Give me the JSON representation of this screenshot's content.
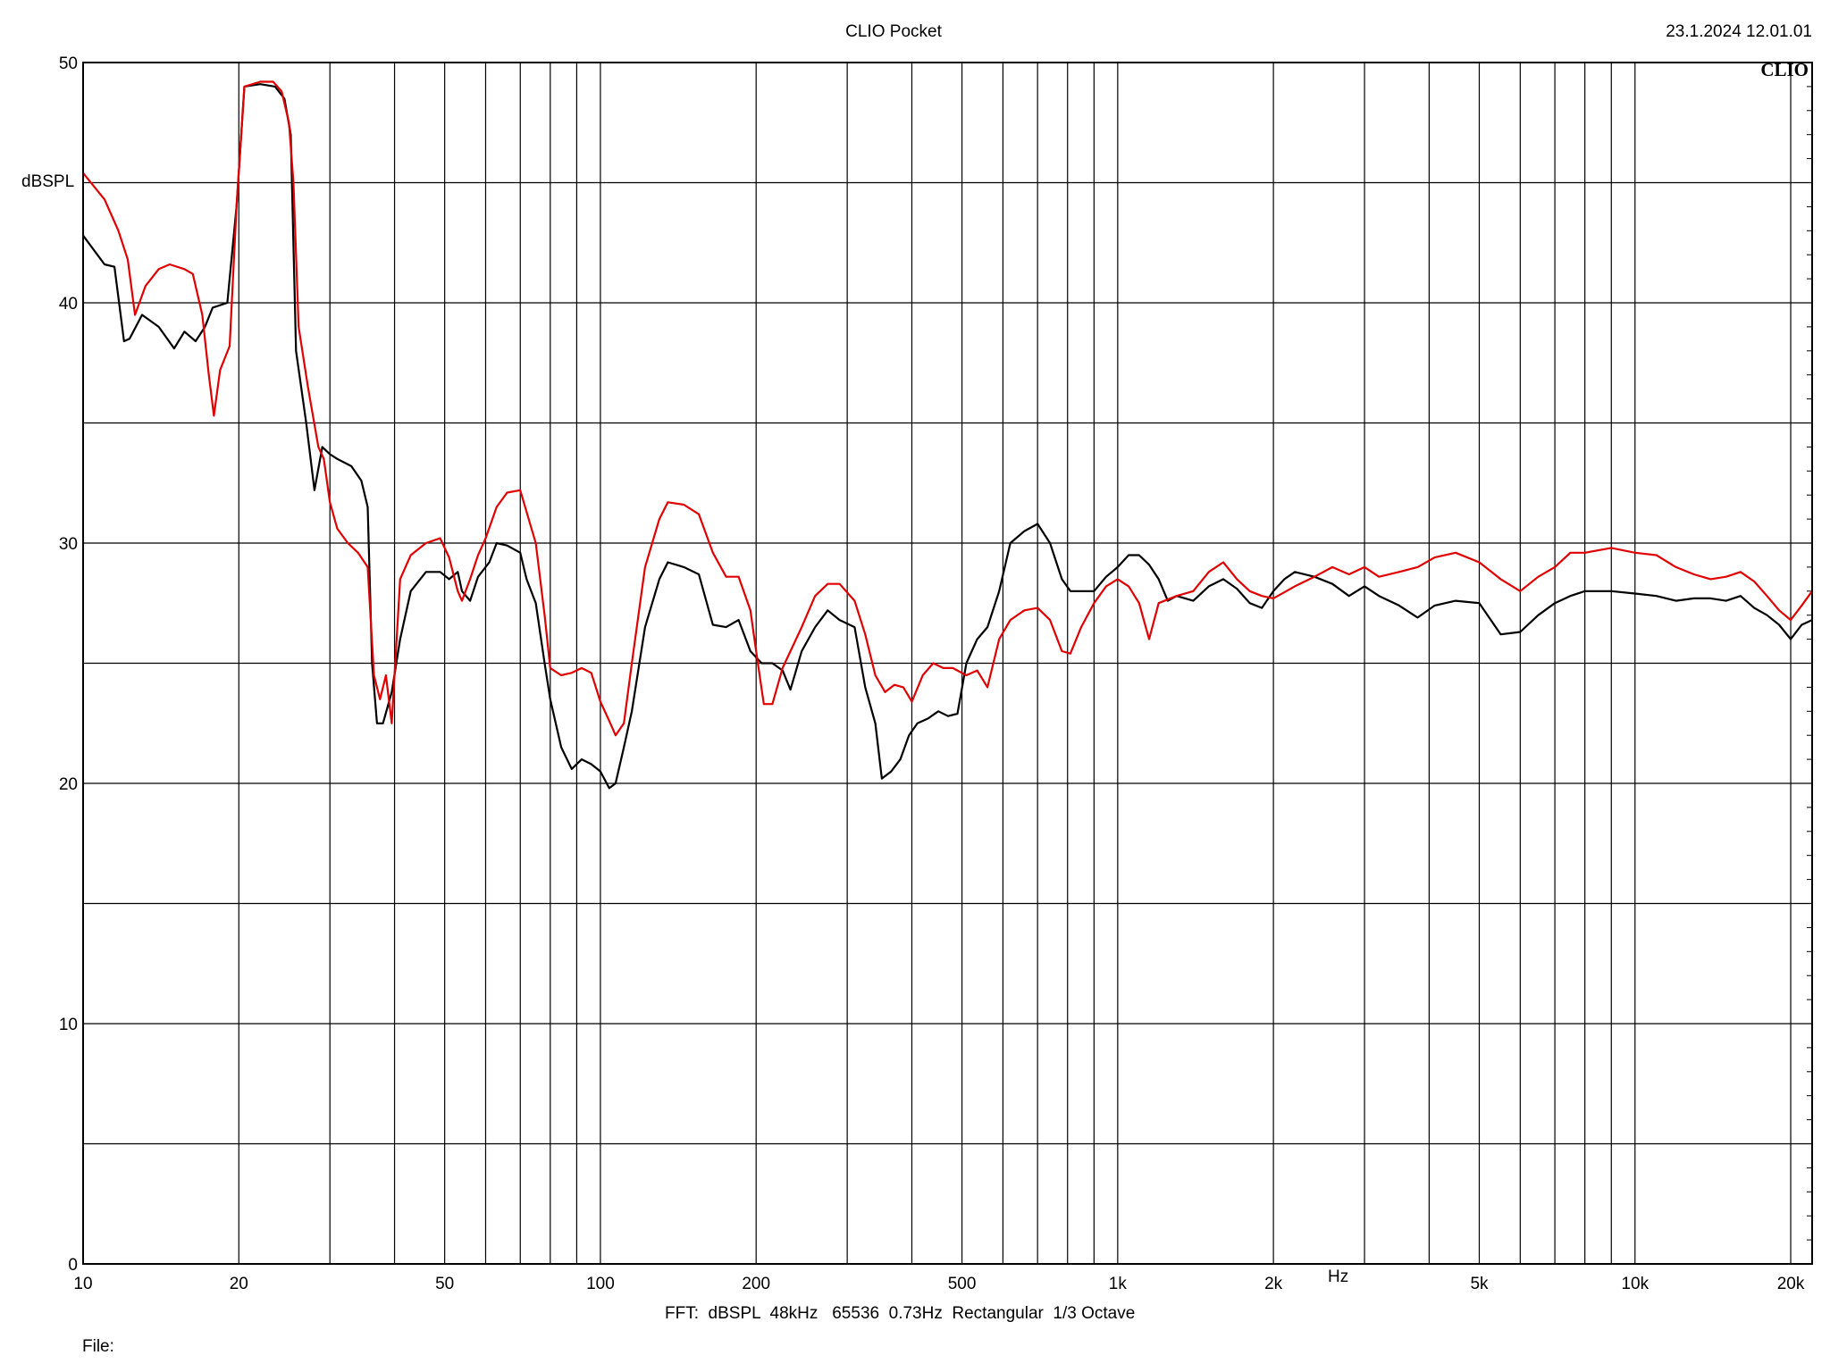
{
  "header": {
    "title": "CLIO Pocket",
    "timestamp": "23.1.2024 12.01.01",
    "brand": "CLIO"
  },
  "footer": {
    "settings": "FFT:  dBSPL  48kHz   65536  0.73Hz  Rectangular  1/3 Octave",
    "file_label": "File:"
  },
  "colors": {
    "series_black": "#000000",
    "series_red": "#e00000",
    "grid": "#000000",
    "background": "#ffffff"
  },
  "chart_data": {
    "type": "line",
    "title": "CLIO Pocket",
    "xlabel": "Hz",
    "ylabel": "dBSPL",
    "x_scale": "log",
    "xlim": [
      10,
      22000
    ],
    "ylim": [
      0,
      50
    ],
    "grid": true,
    "x_ticks": [
      {
        "value": 10,
        "label": "10"
      },
      {
        "value": 20,
        "label": "20"
      },
      {
        "value": 50,
        "label": "50"
      },
      {
        "value": 100,
        "label": "100"
      },
      {
        "value": 200,
        "label": "200"
      },
      {
        "value": 500,
        "label": "500"
      },
      {
        "value": 1000,
        "label": "1k"
      },
      {
        "value": 2000,
        "label": "2k"
      },
      {
        "value": 5000,
        "label": "5k"
      },
      {
        "value": 10000,
        "label": "10k"
      },
      {
        "value": 20000,
        "label": "20k"
      }
    ],
    "y_ticks": [
      {
        "value": 0,
        "label": "0"
      },
      {
        "value": 10,
        "label": "10"
      },
      {
        "value": 20,
        "label": "20"
      },
      {
        "value": 30,
        "label": "30"
      },
      {
        "value": 40,
        "label": "40"
      },
      {
        "value": 50,
        "label": "50"
      }
    ],
    "series": [
      {
        "color": "#000000",
        "points": [
          [
            10,
            42.8
          ],
          [
            11,
            41.6
          ],
          [
            11.5,
            41.5
          ],
          [
            12,
            38.4
          ],
          [
            12.3,
            38.5
          ],
          [
            13,
            39.5
          ],
          [
            14,
            39.0
          ],
          [
            15,
            38.1
          ],
          [
            15.7,
            38.8
          ],
          [
            16.5,
            38.4
          ],
          [
            17.2,
            39.0
          ],
          [
            17.8,
            39.8
          ],
          [
            19,
            40.0
          ],
          [
            19.8,
            44.0
          ],
          [
            20.5,
            49.0
          ],
          [
            22,
            49.1
          ],
          [
            23.5,
            49.0
          ],
          [
            24.5,
            48.5
          ],
          [
            25.2,
            47.0
          ],
          [
            25.8,
            38.0
          ],
          [
            27,
            35.0
          ],
          [
            28,
            32.2
          ],
          [
            29,
            34.0
          ],
          [
            30,
            33.7
          ],
          [
            31,
            33.5
          ],
          [
            33,
            33.2
          ],
          [
            34.5,
            32.6
          ],
          [
            35.5,
            31.5
          ],
          [
            36.2,
            25.0
          ],
          [
            37,
            22.5
          ],
          [
            38,
            22.5
          ],
          [
            39.5,
            23.8
          ],
          [
            41,
            26.0
          ],
          [
            43,
            28.0
          ],
          [
            46,
            28.8
          ],
          [
            49,
            28.8
          ],
          [
            51,
            28.5
          ],
          [
            53,
            28.8
          ],
          [
            54,
            28.0
          ],
          [
            56,
            27.6
          ],
          [
            58,
            28.6
          ],
          [
            61,
            29.2
          ],
          [
            63,
            30.0
          ],
          [
            66,
            29.9
          ],
          [
            70,
            29.6
          ],
          [
            72,
            28.5
          ],
          [
            75,
            27.5
          ],
          [
            78,
            25.0
          ],
          [
            80,
            23.5
          ],
          [
            84,
            21.5
          ],
          [
            88,
            20.6
          ],
          [
            92,
            21.0
          ],
          [
            96,
            20.8
          ],
          [
            100,
            20.5
          ],
          [
            104,
            19.8
          ],
          [
            107,
            20.0
          ],
          [
            111,
            21.5
          ],
          [
            115,
            23.0
          ],
          [
            122,
            26.5
          ],
          [
            130,
            28.5
          ],
          [
            135,
            29.2
          ],
          [
            145,
            29.0
          ],
          [
            155,
            28.7
          ],
          [
            165,
            26.6
          ],
          [
            175,
            26.5
          ],
          [
            185,
            26.8
          ],
          [
            195,
            25.5
          ],
          [
            205,
            25.0
          ],
          [
            215,
            25.0
          ],
          [
            225,
            24.7
          ],
          [
            233,
            23.9
          ],
          [
            245,
            25.5
          ],
          [
            260,
            26.5
          ],
          [
            275,
            27.2
          ],
          [
            290,
            26.8
          ],
          [
            310,
            26.5
          ],
          [
            325,
            24.0
          ],
          [
            340,
            22.5
          ],
          [
            350,
            20.2
          ],
          [
            365,
            20.5
          ],
          [
            380,
            21.0
          ],
          [
            395,
            22.0
          ],
          [
            410,
            22.5
          ],
          [
            430,
            22.7
          ],
          [
            450,
            23.0
          ],
          [
            470,
            22.8
          ],
          [
            490,
            22.9
          ],
          [
            510,
            25.0
          ],
          [
            535,
            26.0
          ],
          [
            560,
            26.5
          ],
          [
            590,
            28.0
          ],
          [
            620,
            30.0
          ],
          [
            660,
            30.5
          ],
          [
            700,
            30.8
          ],
          [
            740,
            30.0
          ],
          [
            780,
            28.5
          ],
          [
            810,
            28.0
          ],
          [
            850,
            28.0
          ],
          [
            900,
            28.0
          ],
          [
            950,
            28.6
          ],
          [
            1000,
            29.0
          ],
          [
            1050,
            29.5
          ],
          [
            1100,
            29.5
          ],
          [
            1150,
            29.1
          ],
          [
            1200,
            28.5
          ],
          [
            1250,
            27.6
          ],
          [
            1300,
            27.8
          ],
          [
            1400,
            27.6
          ],
          [
            1500,
            28.2
          ],
          [
            1600,
            28.5
          ],
          [
            1700,
            28.1
          ],
          [
            1800,
            27.5
          ],
          [
            1900,
            27.3
          ],
          [
            2000,
            28.0
          ],
          [
            2100,
            28.5
          ],
          [
            2200,
            28.8
          ],
          [
            2400,
            28.6
          ],
          [
            2600,
            28.3
          ],
          [
            2800,
            27.8
          ],
          [
            3000,
            28.2
          ],
          [
            3200,
            27.8
          ],
          [
            3500,
            27.4
          ],
          [
            3800,
            26.9
          ],
          [
            4100,
            27.4
          ],
          [
            4500,
            27.6
          ],
          [
            5000,
            27.5
          ],
          [
            5500,
            26.2
          ],
          [
            6000,
            26.3
          ],
          [
            6500,
            27.0
          ],
          [
            7000,
            27.5
          ],
          [
            7500,
            27.8
          ],
          [
            8000,
            28.0
          ],
          [
            9000,
            28.0
          ],
          [
            10000,
            27.9
          ],
          [
            11000,
            27.8
          ],
          [
            12000,
            27.6
          ],
          [
            13000,
            27.7
          ],
          [
            14000,
            27.7
          ],
          [
            15000,
            27.6
          ],
          [
            16000,
            27.8
          ],
          [
            17000,
            27.3
          ],
          [
            18000,
            27.0
          ],
          [
            19000,
            26.6
          ],
          [
            20000,
            26.0
          ],
          [
            21000,
            26.6
          ],
          [
            22000,
            26.8
          ]
        ]
      },
      {
        "color": "#e00000",
        "points": [
          [
            10,
            45.4
          ],
          [
            11,
            44.3
          ],
          [
            11.7,
            43.0
          ],
          [
            12.2,
            41.8
          ],
          [
            12.6,
            39.5
          ],
          [
            13.2,
            40.7
          ],
          [
            14,
            41.4
          ],
          [
            14.7,
            41.6
          ],
          [
            15.7,
            41.4
          ],
          [
            16.3,
            41.2
          ],
          [
            17,
            39.5
          ],
          [
            17.5,
            37.0
          ],
          [
            17.9,
            35.3
          ],
          [
            18.4,
            37.2
          ],
          [
            19.2,
            38.2
          ],
          [
            19.8,
            44.0
          ],
          [
            20.5,
            49.0
          ],
          [
            22,
            49.2
          ],
          [
            23.3,
            49.2
          ],
          [
            24.2,
            48.8
          ],
          [
            25,
            47.5
          ],
          [
            25.5,
            45.0
          ],
          [
            26.1,
            39.0
          ],
          [
            27.2,
            36.5
          ],
          [
            28.5,
            34.0
          ],
          [
            29.2,
            33.5
          ],
          [
            30,
            31.7
          ],
          [
            31,
            30.6
          ],
          [
            32.5,
            30.0
          ],
          [
            34,
            29.6
          ],
          [
            35.5,
            29.0
          ],
          [
            36.5,
            24.5
          ],
          [
            37.5,
            23.5
          ],
          [
            38.5,
            24.5
          ],
          [
            39.5,
            22.5
          ],
          [
            41,
            28.5
          ],
          [
            43,
            29.5
          ],
          [
            46,
            30.0
          ],
          [
            49,
            30.2
          ],
          [
            51,
            29.4
          ],
          [
            53,
            28.0
          ],
          [
            54,
            27.6
          ],
          [
            56,
            28.5
          ],
          [
            58,
            29.5
          ],
          [
            60,
            30.2
          ],
          [
            63,
            31.5
          ],
          [
            66,
            32.1
          ],
          [
            70,
            32.2
          ],
          [
            72,
            31.3
          ],
          [
            75,
            30.0
          ],
          [
            78,
            27.0
          ],
          [
            80,
            24.8
          ],
          [
            84,
            24.5
          ],
          [
            88,
            24.6
          ],
          [
            92,
            24.8
          ],
          [
            96,
            24.6
          ],
          [
            100,
            23.4
          ],
          [
            104,
            22.6
          ],
          [
            107,
            22.0
          ],
          [
            111,
            22.5
          ],
          [
            115,
            25.0
          ],
          [
            122,
            29.0
          ],
          [
            130,
            31.0
          ],
          [
            135,
            31.7
          ],
          [
            145,
            31.6
          ],
          [
            155,
            31.2
          ],
          [
            165,
            29.6
          ],
          [
            175,
            28.6
          ],
          [
            185,
            28.6
          ],
          [
            195,
            27.2
          ],
          [
            200,
            25.5
          ],
          [
            207,
            23.3
          ],
          [
            215,
            23.3
          ],
          [
            225,
            24.8
          ],
          [
            245,
            26.5
          ],
          [
            260,
            27.8
          ],
          [
            275,
            28.3
          ],
          [
            290,
            28.3
          ],
          [
            310,
            27.6
          ],
          [
            325,
            26.2
          ],
          [
            340,
            24.5
          ],
          [
            355,
            23.8
          ],
          [
            370,
            24.1
          ],
          [
            385,
            24.0
          ],
          [
            400,
            23.4
          ],
          [
            420,
            24.5
          ],
          [
            440,
            25.0
          ],
          [
            460,
            24.8
          ],
          [
            480,
            24.8
          ],
          [
            510,
            24.5
          ],
          [
            535,
            24.7
          ],
          [
            560,
            24.0
          ],
          [
            590,
            26.0
          ],
          [
            620,
            26.8
          ],
          [
            660,
            27.2
          ],
          [
            700,
            27.3
          ],
          [
            740,
            26.8
          ],
          [
            780,
            25.5
          ],
          [
            810,
            25.4
          ],
          [
            850,
            26.5
          ],
          [
            900,
            27.5
          ],
          [
            950,
            28.2
          ],
          [
            1000,
            28.5
          ],
          [
            1050,
            28.2
          ],
          [
            1100,
            27.5
          ],
          [
            1150,
            26.0
          ],
          [
            1200,
            27.5
          ],
          [
            1300,
            27.8
          ],
          [
            1400,
            28.0
          ],
          [
            1500,
            28.8
          ],
          [
            1600,
            29.2
          ],
          [
            1700,
            28.5
          ],
          [
            1800,
            28.0
          ],
          [
            1900,
            27.8
          ],
          [
            2000,
            27.7
          ],
          [
            2200,
            28.2
          ],
          [
            2400,
            28.6
          ],
          [
            2600,
            29.0
          ],
          [
            2800,
            28.7
          ],
          [
            3000,
            29.0
          ],
          [
            3200,
            28.6
          ],
          [
            3500,
            28.8
          ],
          [
            3800,
            29.0
          ],
          [
            4100,
            29.4
          ],
          [
            4500,
            29.6
          ],
          [
            5000,
            29.2
          ],
          [
            5500,
            28.5
          ],
          [
            6000,
            28.0
          ],
          [
            6500,
            28.6
          ],
          [
            7000,
            29.0
          ],
          [
            7500,
            29.6
          ],
          [
            8000,
            29.6
          ],
          [
            9000,
            29.8
          ],
          [
            10000,
            29.6
          ],
          [
            11000,
            29.5
          ],
          [
            12000,
            29.0
          ],
          [
            13000,
            28.7
          ],
          [
            14000,
            28.5
          ],
          [
            15000,
            28.6
          ],
          [
            16000,
            28.8
          ],
          [
            17000,
            28.4
          ],
          [
            18000,
            27.8
          ],
          [
            19000,
            27.2
          ],
          [
            20000,
            26.8
          ],
          [
            21000,
            27.4
          ],
          [
            22000,
            28.0
          ]
        ]
      }
    ]
  }
}
